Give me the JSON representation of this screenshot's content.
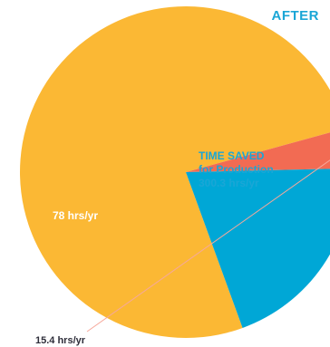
{
  "chart_data": {
    "type": "pie",
    "title": "AFTER",
    "slices": [
      {
        "label_lines": [
          "TIME SAVED",
          "for Production",
          "300.3 hrs/yr"
        ],
        "value": 300.3,
        "unit": "hrs/yr",
        "color": "#fbb834"
      },
      {
        "label_lines": [
          "15.4 hrs/yr"
        ],
        "value": 15.4,
        "unit": "hrs/yr",
        "color": "#f26b53"
      },
      {
        "label_lines": [
          "78 hrs/yr"
        ],
        "value": 78,
        "unit": "hrs/yr",
        "color": "#00a7d6"
      }
    ],
    "label_colors": {
      "time_saved": "#1aa6d6",
      "inner": "#ffffff",
      "outer": "#2e2e3a"
    }
  }
}
